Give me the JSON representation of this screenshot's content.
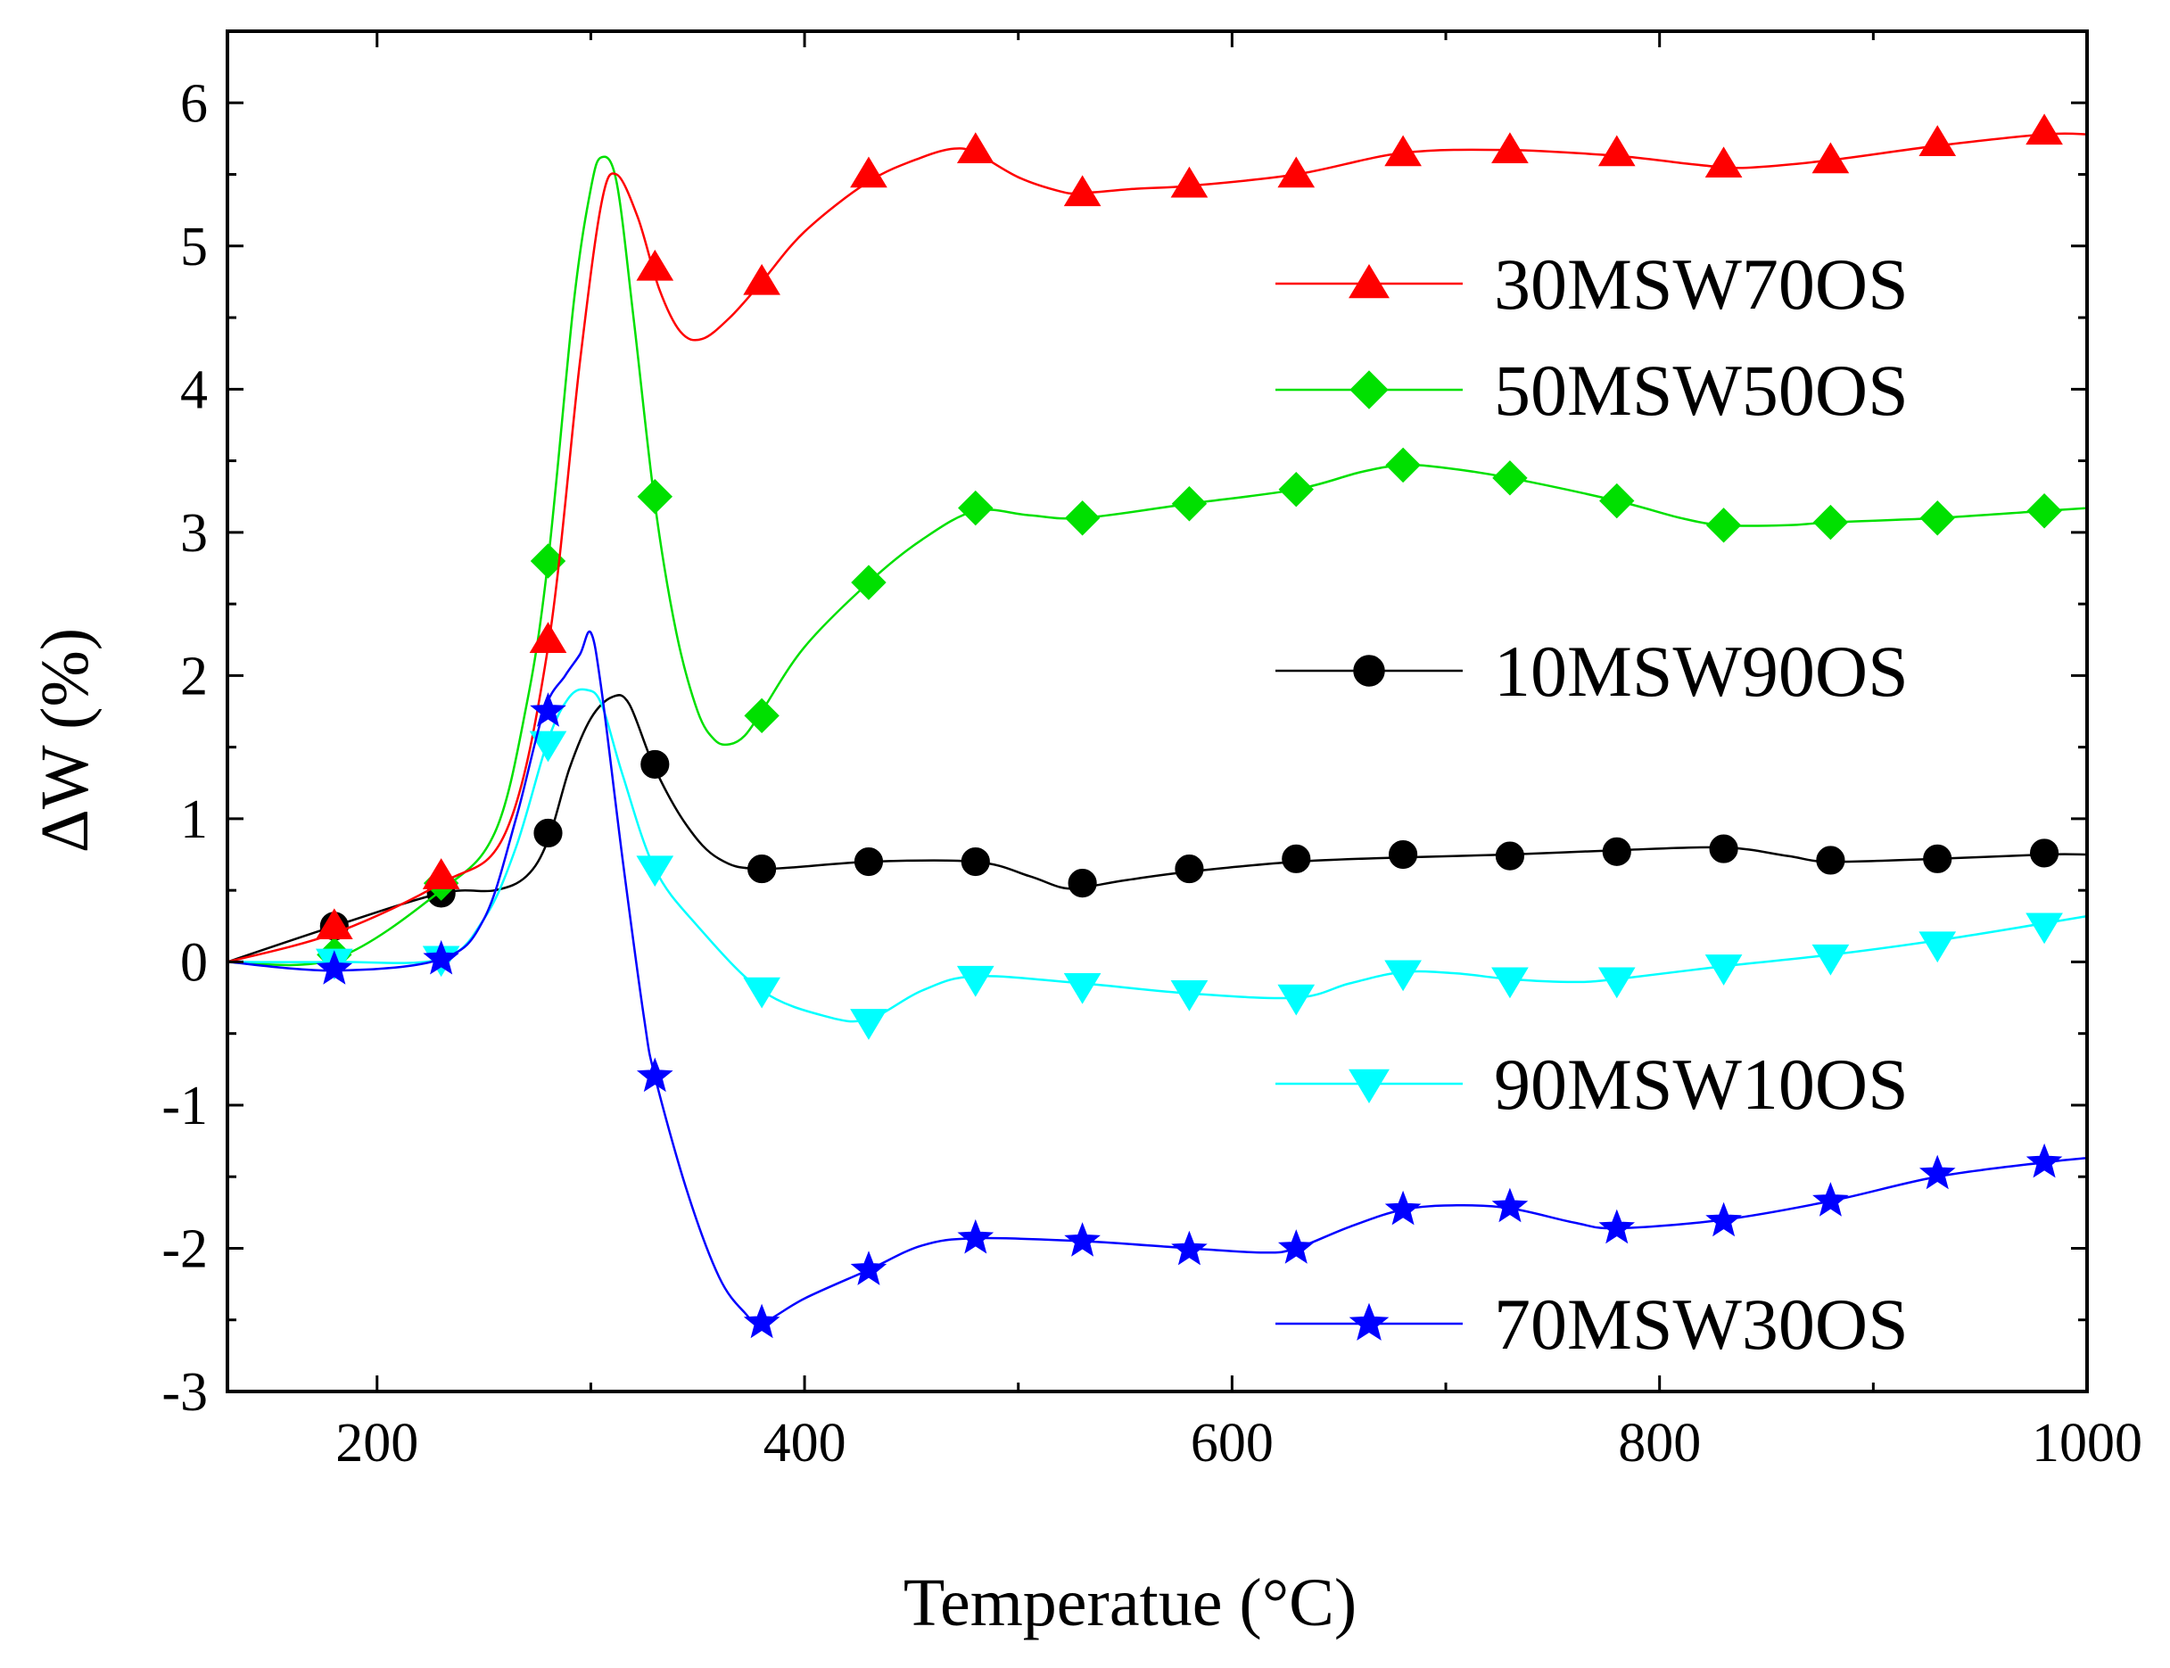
{
  "chart_data": {
    "type": "line",
    "title": "",
    "xlabel": "Temperatue (°C)",
    "ylabel": "ΔW (%)",
    "xlim": [
      130,
      1000
    ],
    "ylim": [
      -3,
      6.5
    ],
    "x_ticks": [
      200,
      400,
      600,
      800,
      1000
    ],
    "y_ticks": [
      -3,
      -2,
      -1,
      0,
      1,
      2,
      3,
      4,
      5,
      6
    ],
    "x_ticks_minor": [
      300,
      500,
      700,
      900
    ],
    "y_ticks_minor": [
      -2.5,
      -1.5,
      -0.5,
      0.5,
      1.5,
      2.5,
      3.5,
      4.5,
      5.5
    ],
    "series": [
      {
        "name": "30MSW70OS",
        "color": "#ff0000",
        "marker": "triangle-up",
        "curve": [
          [
            130,
            0.0
          ],
          [
            180,
            0.2
          ],
          [
            230,
            0.55
          ],
          [
            260,
            0.9
          ],
          [
            280,
            2.2
          ],
          [
            295,
            4.2
          ],
          [
            305,
            5.3
          ],
          [
            312,
            5.5
          ],
          [
            322,
            5.2
          ],
          [
            332,
            4.7
          ],
          [
            342,
            4.4
          ],
          [
            352,
            4.35
          ],
          [
            365,
            4.5
          ],
          [
            380,
            4.75
          ],
          [
            400,
            5.1
          ],
          [
            430,
            5.45
          ],
          [
            455,
            5.62
          ],
          [
            470,
            5.68
          ],
          [
            480,
            5.65
          ],
          [
            500,
            5.48
          ],
          [
            520,
            5.38
          ],
          [
            530,
            5.37
          ],
          [
            555,
            5.4
          ],
          [
            580,
            5.42
          ],
          [
            630,
            5.5
          ],
          [
            680,
            5.65
          ],
          [
            730,
            5.67
          ],
          [
            780,
            5.63
          ],
          [
            810,
            5.58
          ],
          [
            830,
            5.55
          ],
          [
            845,
            5.55
          ],
          [
            880,
            5.6
          ],
          [
            930,
            5.7
          ],
          [
            980,
            5.78
          ],
          [
            1000,
            5.78
          ]
        ],
        "markers": [
          [
            180,
            0.25
          ],
          [
            230,
            0.6
          ],
          [
            280,
            2.25
          ],
          [
            330,
            4.85
          ],
          [
            380,
            4.75
          ],
          [
            430,
            5.5
          ],
          [
            480,
            5.67
          ],
          [
            530,
            5.37
          ],
          [
            580,
            5.43
          ],
          [
            630,
            5.5
          ],
          [
            680,
            5.65
          ],
          [
            730,
            5.67
          ],
          [
            780,
            5.65
          ],
          [
            830,
            5.57
          ],
          [
            880,
            5.6
          ],
          [
            930,
            5.72
          ],
          [
            980,
            5.8
          ]
        ]
      },
      {
        "name": "50MSW50OS",
        "color": "#00e000",
        "marker": "diamond",
        "curve": [
          [
            130,
            0.0
          ],
          [
            180,
            0.02
          ],
          [
            230,
            0.5
          ],
          [
            255,
            0.9
          ],
          [
            270,
            1.8
          ],
          [
            280,
            2.8
          ],
          [
            292,
            4.6
          ],
          [
            300,
            5.4
          ],
          [
            305,
            5.62
          ],
          [
            312,
            5.45
          ],
          [
            320,
            4.5
          ],
          [
            330,
            3.2
          ],
          [
            340,
            2.3
          ],
          [
            350,
            1.75
          ],
          [
            358,
            1.55
          ],
          [
            365,
            1.52
          ],
          [
            372,
            1.58
          ],
          [
            380,
            1.75
          ],
          [
            400,
            2.2
          ],
          [
            430,
            2.65
          ],
          [
            455,
            2.95
          ],
          [
            480,
            3.15
          ],
          [
            505,
            3.12
          ],
          [
            530,
            3.1
          ],
          [
            580,
            3.2
          ],
          [
            630,
            3.3
          ],
          [
            660,
            3.42
          ],
          [
            680,
            3.47
          ],
          [
            700,
            3.45
          ],
          [
            730,
            3.38
          ],
          [
            780,
            3.22
          ],
          [
            810,
            3.1
          ],
          [
            830,
            3.05
          ],
          [
            860,
            3.05
          ],
          [
            880,
            3.07
          ],
          [
            930,
            3.1
          ],
          [
            980,
            3.15
          ],
          [
            1000,
            3.17
          ]
        ],
        "markers": [
          [
            180,
            0.05
          ],
          [
            230,
            0.55
          ],
          [
            280,
            2.8
          ],
          [
            330,
            3.25
          ],
          [
            380,
            1.72
          ],
          [
            430,
            2.65
          ],
          [
            480,
            3.17
          ],
          [
            530,
            3.1
          ],
          [
            580,
            3.2
          ],
          [
            630,
            3.3
          ],
          [
            680,
            3.47
          ],
          [
            730,
            3.38
          ],
          [
            780,
            3.22
          ],
          [
            830,
            3.05
          ],
          [
            880,
            3.07
          ],
          [
            930,
            3.1
          ],
          [
            980,
            3.15
          ]
        ]
      },
      {
        "name": "10MSW90OS",
        "color": "#000000",
        "marker": "circle",
        "curve": [
          [
            130,
            0.0
          ],
          [
            180,
            0.25
          ],
          [
            230,
            0.48
          ],
          [
            255,
            0.5
          ],
          [
            270,
            0.6
          ],
          [
            280,
            0.85
          ],
          [
            290,
            1.35
          ],
          [
            300,
            1.7
          ],
          [
            310,
            1.85
          ],
          [
            318,
            1.8
          ],
          [
            330,
            1.35
          ],
          [
            345,
            0.95
          ],
          [
            360,
            0.72
          ],
          [
            380,
            0.65
          ],
          [
            430,
            0.7
          ],
          [
            480,
            0.7
          ],
          [
            505,
            0.6
          ],
          [
            520,
            0.52
          ],
          [
            530,
            0.52
          ],
          [
            550,
            0.57
          ],
          [
            580,
            0.63
          ],
          [
            630,
            0.7
          ],
          [
            680,
            0.73
          ],
          [
            730,
            0.75
          ],
          [
            780,
            0.78
          ],
          [
            830,
            0.8
          ],
          [
            860,
            0.74
          ],
          [
            880,
            0.7
          ],
          [
            930,
            0.72
          ],
          [
            980,
            0.75
          ],
          [
            1000,
            0.75
          ]
        ],
        "markers": [
          [
            180,
            0.25
          ],
          [
            230,
            0.48
          ],
          [
            280,
            0.9
          ],
          [
            330,
            1.38
          ],
          [
            380,
            0.65
          ],
          [
            430,
            0.7
          ],
          [
            480,
            0.7
          ],
          [
            530,
            0.55
          ],
          [
            580,
            0.65
          ],
          [
            630,
            0.72
          ],
          [
            680,
            0.75
          ],
          [
            730,
            0.74
          ],
          [
            780,
            0.77
          ],
          [
            830,
            0.79
          ],
          [
            880,
            0.71
          ],
          [
            930,
            0.72
          ],
          [
            980,
            0.76
          ]
        ]
      },
      {
        "name": "90MSW10OS",
        "color": "#00ffff",
        "marker": "triangle-down",
        "curve": [
          [
            130,
            0.0
          ],
          [
            180,
            0.0
          ],
          [
            230,
            0.02
          ],
          [
            250,
            0.3
          ],
          [
            265,
            0.8
          ],
          [
            280,
            1.55
          ],
          [
            290,
            1.85
          ],
          [
            298,
            1.9
          ],
          [
            305,
            1.8
          ],
          [
            315,
            1.3
          ],
          [
            330,
            0.65
          ],
          [
            350,
            0.25
          ],
          [
            380,
            -0.2
          ],
          [
            410,
            -0.38
          ],
          [
            430,
            -0.4
          ],
          [
            455,
            -0.2
          ],
          [
            480,
            -0.1
          ],
          [
            530,
            -0.15
          ],
          [
            580,
            -0.22
          ],
          [
            630,
            -0.25
          ],
          [
            655,
            -0.15
          ],
          [
            680,
            -0.07
          ],
          [
            705,
            -0.08
          ],
          [
            730,
            -0.12
          ],
          [
            760,
            -0.14
          ],
          [
            780,
            -0.12
          ],
          [
            830,
            -0.03
          ],
          [
            880,
            0.05
          ],
          [
            930,
            0.15
          ],
          [
            980,
            0.27
          ],
          [
            1000,
            0.32
          ]
        ],
        "markers": [
          [
            180,
            0.0
          ],
          [
            230,
            0.02
          ],
          [
            280,
            1.52
          ],
          [
            330,
            0.65
          ],
          [
            380,
            -0.2
          ],
          [
            430,
            -0.42
          ],
          [
            480,
            -0.12
          ],
          [
            530,
            -0.17
          ],
          [
            580,
            -0.22
          ],
          [
            630,
            -0.25
          ],
          [
            680,
            -0.08
          ],
          [
            730,
            -0.13
          ],
          [
            780,
            -0.13
          ],
          [
            830,
            -0.04
          ],
          [
            880,
            0.03
          ],
          [
            930,
            0.12
          ],
          [
            980,
            0.25
          ]
        ]
      },
      {
        "name": "70MSW30OS",
        "color": "#0000ff",
        "marker": "star",
        "curve": [
          [
            130,
            0.0
          ],
          [
            180,
            -0.06
          ],
          [
            230,
            0.02
          ],
          [
            250,
            0.3
          ],
          [
            265,
            1.0
          ],
          [
            278,
            1.75
          ],
          [
            288,
            2.0
          ],
          [
            295,
            2.15
          ],
          [
            300,
            2.3
          ],
          [
            305,
            1.9
          ],
          [
            315,
            0.7
          ],
          [
            325,
            -0.4
          ],
          [
            330,
            -0.8
          ],
          [
            345,
            -1.6
          ],
          [
            360,
            -2.2
          ],
          [
            372,
            -2.45
          ],
          [
            380,
            -2.52
          ],
          [
            400,
            -2.35
          ],
          [
            430,
            -2.15
          ],
          [
            455,
            -1.98
          ],
          [
            480,
            -1.93
          ],
          [
            530,
            -1.95
          ],
          [
            580,
            -2.0
          ],
          [
            615,
            -2.03
          ],
          [
            630,
            -2.0
          ],
          [
            655,
            -1.85
          ],
          [
            680,
            -1.73
          ],
          [
            705,
            -1.7
          ],
          [
            730,
            -1.72
          ],
          [
            760,
            -1.82
          ],
          [
            780,
            -1.86
          ],
          [
            830,
            -1.8
          ],
          [
            880,
            -1.67
          ],
          [
            930,
            -1.5
          ],
          [
            980,
            -1.4
          ],
          [
            1000,
            -1.37
          ]
        ],
        "markers": [
          [
            180,
            -0.05
          ],
          [
            230,
            0.02
          ],
          [
            280,
            1.75
          ],
          [
            330,
            -0.8
          ],
          [
            380,
            -2.52
          ],
          [
            430,
            -2.15
          ],
          [
            480,
            -1.93
          ],
          [
            530,
            -1.95
          ],
          [
            580,
            -2.01
          ],
          [
            630,
            -2.0
          ],
          [
            680,
            -1.73
          ],
          [
            730,
            -1.71
          ],
          [
            780,
            -1.86
          ],
          [
            830,
            -1.81
          ],
          [
            880,
            -1.67
          ],
          [
            930,
            -1.48
          ],
          [
            980,
            -1.4
          ]
        ]
      }
    ]
  }
}
